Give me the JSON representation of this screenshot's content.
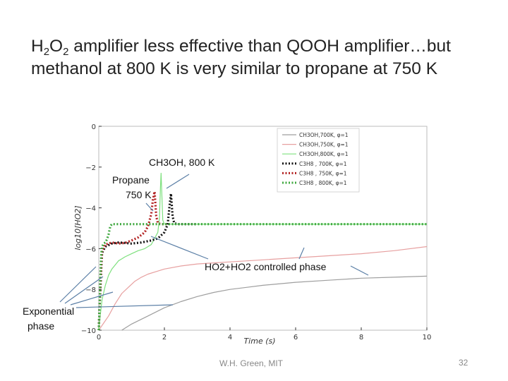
{
  "slide": {
    "title_line1": {
      "pre": "H",
      "sub1": "2",
      "mid": "O",
      "sub2": "2",
      "post": " amplifier less effective than QOOH amplifier…but"
    },
    "title_line2": "methanol at 800 K is very similar to propane at 750 K",
    "footer": "W.H. Green, MIT",
    "page_number": "32"
  },
  "annotations": {
    "ch3oh": "CH3OH, 800 K",
    "propane_1": "Propane",
    "propane_2": "750 K",
    "ho2": "HO2+HO2 controlled phase",
    "exp_1": "Exponential",
    "exp_2": "phase"
  },
  "colors": {
    "arrow": "#5b7fa6",
    "axis": "#333333",
    "frame": "#bbbbbb"
  },
  "chart_data": {
    "type": "line",
    "xlabel": "Time (s)",
    "ylabel": "log10[HO2]",
    "xlim": [
      0,
      10
    ],
    "ylim": [
      -10,
      0
    ],
    "xticks": [
      0,
      2,
      4,
      6,
      8,
      10
    ],
    "yticks": [
      0,
      -2,
      -4,
      -6,
      -8,
      -10
    ],
    "legend_position": "top-right",
    "series": [
      {
        "name": "CH3OH,700K, φ=1",
        "color": "#9e9e9e",
        "style": "solid",
        "x": [
          0.7,
          1,
          1.5,
          2,
          2.5,
          3,
          3.5,
          4,
          4.5,
          5,
          6,
          7,
          8,
          9,
          10
        ],
        "y": [
          -10,
          -9.7,
          -9.3,
          -8.9,
          -8.6,
          -8.35,
          -8.15,
          -8,
          -7.9,
          -7.8,
          -7.65,
          -7.55,
          -7.45,
          -7.4,
          -7.35
        ]
      },
      {
        "name": "CH3OH,750K, φ=1",
        "color": "#e7a0a0",
        "style": "solid",
        "x": [
          0,
          0.3,
          0.5,
          0.7,
          0.9,
          1.1,
          1.3,
          1.5,
          1.8,
          2,
          2.5,
          3,
          3.5,
          4,
          5,
          6,
          7,
          8,
          9,
          10
        ],
        "y": [
          -10,
          -9.3,
          -8.7,
          -8.2,
          -7.9,
          -7.6,
          -7.4,
          -7.25,
          -7.1,
          -7,
          -6.85,
          -6.75,
          -6.7,
          -6.65,
          -6.55,
          -6.45,
          -6.35,
          -6.25,
          -6.1,
          -5.9
        ]
      },
      {
        "name": "CH3OH,800K, φ=1",
        "color": "#7ee07e",
        "style": "solid",
        "x": [
          0,
          0.05,
          0.1,
          0.2,
          0.3,
          0.4,
          0.5,
          0.6,
          0.7,
          0.8,
          1,
          1.2,
          1.4,
          1.6,
          1.8,
          1.85,
          1.88,
          1.9,
          1.95,
          2,
          3,
          4,
          5,
          6,
          7,
          8,
          9,
          10
        ],
        "y": [
          -10,
          -9.2,
          -8.5,
          -7.8,
          -7.3,
          -7,
          -6.8,
          -6.6,
          -6.5,
          -6.4,
          -6.25,
          -6.1,
          -6,
          -5.8,
          -5.2,
          -4.5,
          -3,
          -2.3,
          -4.6,
          -4.8,
          -4.8,
          -4.8,
          -4.8,
          -4.8,
          -4.8,
          -4.8,
          -4.8,
          -4.8
        ]
      },
      {
        "name": "C3H8 , 700K, φ=1",
        "color": "#111111",
        "style": "dotted",
        "x": [
          0,
          0.02,
          0.05,
          0.08,
          0.1,
          0.2,
          0.4,
          0.6,
          0.8,
          1,
          1.3,
          1.6,
          1.8,
          2,
          2.1,
          2.15,
          2.2,
          2.25,
          2.3,
          2.4,
          2.5,
          2.7,
          3
        ],
        "y": [
          -10,
          -9,
          -8,
          -6.8,
          -6.2,
          -5.9,
          -5.75,
          -5.7,
          -5.72,
          -5.75,
          -5.7,
          -5.6,
          -5.5,
          -5.2,
          -4.8,
          -4,
          -3.3,
          -4.4,
          -4.75,
          -4.8,
          -4.8,
          -4.8,
          -4.8
        ]
      },
      {
        "name": "C3H8 , 750K, φ=1",
        "color": "#b22222",
        "style": "dotted",
        "x": [
          0,
          0.02,
          0.05,
          0.08,
          0.1,
          0.2,
          0.4,
          0.6,
          0.8,
          1,
          1.2,
          1.4,
          1.5,
          1.6,
          1.65,
          1.7,
          1.75,
          1.8,
          1.9,
          2.1
        ],
        "y": [
          -10,
          -9,
          -7.8,
          -6.6,
          -6.1,
          -5.8,
          -5.7,
          -5.75,
          -5.72,
          -5.6,
          -5.45,
          -5.2,
          -4.9,
          -4.3,
          -3.6,
          -3.2,
          -4.4,
          -4.75,
          -4.8,
          -4.8
        ]
      },
      {
        "name": "C3H8 , 800K, φ=1",
        "color": "#3fa83f",
        "style": "dotted",
        "x": [
          0,
          0.02,
          0.04,
          0.06,
          0.08,
          0.1,
          0.15,
          0.2,
          0.25,
          0.3,
          0.35,
          0.4,
          0.5,
          0.6,
          0.7,
          1,
          2,
          3,
          4,
          5,
          6,
          7,
          8,
          9,
          10
        ],
        "y": [
          -10,
          -9,
          -7.8,
          -6.8,
          -6.2,
          -5.9,
          -5.75,
          -5.7,
          -5.55,
          -5.3,
          -4.9,
          -4.8,
          -4.8,
          -4.8,
          -4.8,
          -4.8,
          -4.8,
          -4.8,
          -4.8,
          -4.8,
          -4.8,
          -4.8,
          -4.8,
          -4.8,
          -4.8
        ]
      }
    ]
  }
}
